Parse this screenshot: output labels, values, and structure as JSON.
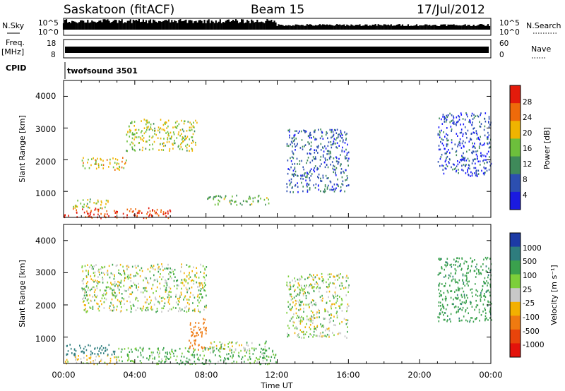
{
  "header": {
    "station": "Saskatoon (fitACF)",
    "beam": "Beam 15",
    "date": "17/Jul/2012"
  },
  "nsky_panel": {
    "left_label": "N.Sky",
    "left_ticks": [
      "10^5",
      "10^0"
    ],
    "right_label": "N.Search",
    "right_ticks": [
      "10^5",
      "10^0"
    ]
  },
  "freq_panel": {
    "left_label_1": "Freq.",
    "left_label_2": "[MHz]",
    "left_ticks": [
      "18",
      "8"
    ],
    "right_label": "Nave",
    "right_ticks": [
      "60",
      "0"
    ]
  },
  "cpid_panel": {
    "label": "CPID",
    "value": "twofsound 3501"
  },
  "power_panel": {
    "ylabel": "Slant Range [km]",
    "yticks": [
      "4000",
      "3000",
      "2000",
      "1000"
    ],
    "colorbar_label": "Power [dB]",
    "colorbar_ticks": [
      "28",
      "24",
      "20",
      "16",
      "12",
      "8",
      "4"
    ],
    "colors": [
      "#1a1ae0",
      "#2c4fb0",
      "#3f8a5a",
      "#6dbf3c",
      "#f0b400",
      "#ee6a0a",
      "#e31b0b"
    ]
  },
  "velocity_panel": {
    "ylabel": "Slant Range [km]",
    "yticks": [
      "4000",
      "3000",
      "2000",
      "1000"
    ],
    "colorbar_label": "Velocity [m s⁻¹]",
    "colorbar_ticks": [
      "1000",
      "500",
      "100",
      "25",
      "-25",
      "-100",
      "-500",
      "-1000"
    ],
    "colors": [
      "#1c3aa5",
      "#2e7d7e",
      "#3aa14d",
      "#7ccf3a",
      "#c8c8c8",
      "#f3b000",
      "#ef7a10",
      "#e8440b",
      "#e3130b"
    ]
  },
  "x_axis": {
    "label": "Time UT",
    "ticks": [
      "00:00",
      "04:00",
      "08:00",
      "12:00",
      "16:00",
      "20:00",
      "00:00"
    ]
  },
  "chart_data": [
    {
      "type": "heatmap",
      "quantity": "Power",
      "units": "dB",
      "x_range_hours": [
        0,
        24
      ],
      "y_range_km": [
        180,
        4500
      ],
      "color_range": [
        0,
        32
      ],
      "features": [
        {
          "time_h": [
            0,
            6
          ],
          "range_km": [
            180,
            500
          ],
          "value_db": 28
        },
        {
          "time_h": [
            0.5,
            2.5
          ],
          "range_km": [
            500,
            800
          ],
          "value_db": 18
        },
        {
          "time_h": [
            1,
            3.5
          ],
          "range_km": [
            1700,
            2100
          ],
          "value_db": 20
        },
        {
          "time_h": [
            3.5,
            7.5
          ],
          "range_km": [
            2300,
            3300
          ],
          "value_db": 18
        },
        {
          "time_h": [
            8,
            11.5
          ],
          "range_km": [
            600,
            900
          ],
          "value_db": 14
        },
        {
          "time_h": [
            12.5,
            16
          ],
          "range_km": [
            1000,
            3000
          ],
          "value_db": 8
        },
        {
          "time_h": [
            21,
            24
          ],
          "range_km": [
            1500,
            3500
          ],
          "value_db": 6
        }
      ]
    },
    {
      "type": "heatmap",
      "quantity": "Velocity",
      "units": "m/s",
      "x_range_hours": [
        0,
        24
      ],
      "y_range_km": [
        180,
        4500
      ],
      "color_range": [
        -1000,
        1000
      ],
      "features": [
        {
          "time_h": [
            0,
            3
          ],
          "range_km": [
            180,
            450
          ],
          "value_ms": -100
        },
        {
          "time_h": [
            0,
            3
          ],
          "range_km": [
            450,
            800
          ],
          "value_ms": 500
        },
        {
          "time_h": [
            1,
            8
          ],
          "range_km": [
            1800,
            3300
          ],
          "value_ms": 0
        },
        {
          "time_h": [
            3,
            12
          ],
          "range_km": [
            180,
            700
          ],
          "value_ms": 100
        },
        {
          "time_h": [
            7,
            8
          ],
          "range_km": [
            600,
            1600
          ],
          "value_ms": -500
        },
        {
          "time_h": [
            8,
            11.5
          ],
          "range_km": [
            600,
            900
          ],
          "value_ms": 0
        },
        {
          "time_h": [
            12.5,
            16
          ],
          "range_km": [
            1000,
            3000
          ],
          "value_ms": 0
        },
        {
          "time_h": [
            21,
            24
          ],
          "range_km": [
            1500,
            3500
          ],
          "value_ms": 200
        }
      ]
    }
  ]
}
